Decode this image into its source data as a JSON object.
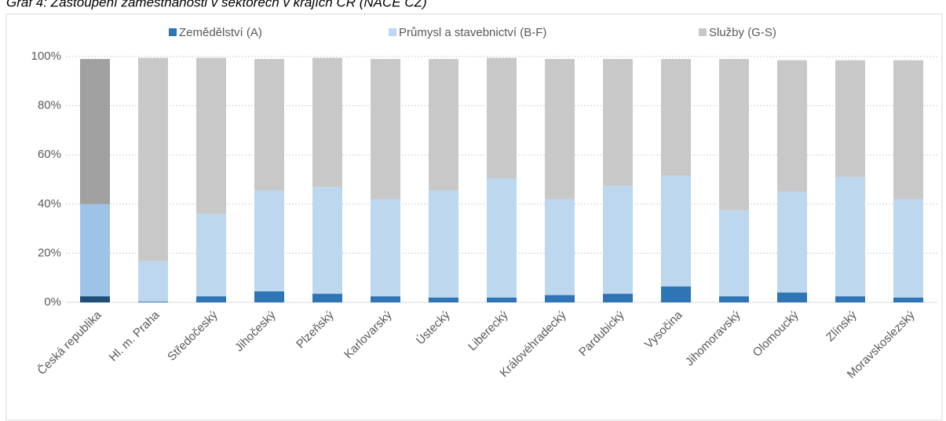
{
  "chart_data": {
    "type": "stacked_bar",
    "title": "Graf 4: Zastoupení zaměstnanosti v sektorech v krajích ČR (NACE CZ)",
    "categories": [
      "Česká republika",
      "Hl. m. Praha",
      "Středočeský",
      "Jihočeský",
      "Plzeňský",
      "Karlovarský",
      "Ústecký",
      "Liberecký",
      "Královéhradecký",
      "Pardubický",
      "Vysočina",
      "Jihomoravský",
      "Olomoucký",
      "Zlínský",
      "Moravskoslezský"
    ],
    "highlight_category": "Česká republika",
    "series": [
      {
        "name": "Zemědělství (A)",
        "color": "#2e75b6",
        "highlight_color": "#1f4e79",
        "values": [
          2.5,
          0.3,
          2.5,
          4.5,
          3.5,
          2.5,
          2,
          2,
          3,
          3.5,
          6.5,
          2.5,
          4,
          2.5,
          2
        ]
      },
      {
        "name": "Průmysl a stavebnictví (B-F)",
        "color": "#bdd7ee",
        "highlight_color": "#9dc3e6",
        "values": [
          37.5,
          16.5,
          33.5,
          41,
          43.5,
          39.5,
          43.5,
          48.5,
          39,
          44,
          45,
          35,
          41,
          48.5,
          40
        ]
      },
      {
        "name": "Služby (G-S)",
        "color": "#c8c8c8",
        "highlight_color": "#a0a0a0",
        "values": [
          59,
          82.7,
          63.5,
          53.5,
          52.5,
          57,
          53.5,
          49,
          57,
          51.5,
          47.5,
          61.5,
          53.5,
          47.5,
          56.5
        ]
      }
    ],
    "ylim": [
      0,
      100
    ],
    "yticks": [
      {
        "value": 0,
        "label": "0%"
      },
      {
        "value": 20,
        "label": "20%"
      },
      {
        "value": 40,
        "label": "40%"
      },
      {
        "value": 60,
        "label": "60%"
      },
      {
        "value": 80,
        "label": "80%"
      },
      {
        "value": 100,
        "label": "100%"
      }
    ],
    "grid": true
  }
}
